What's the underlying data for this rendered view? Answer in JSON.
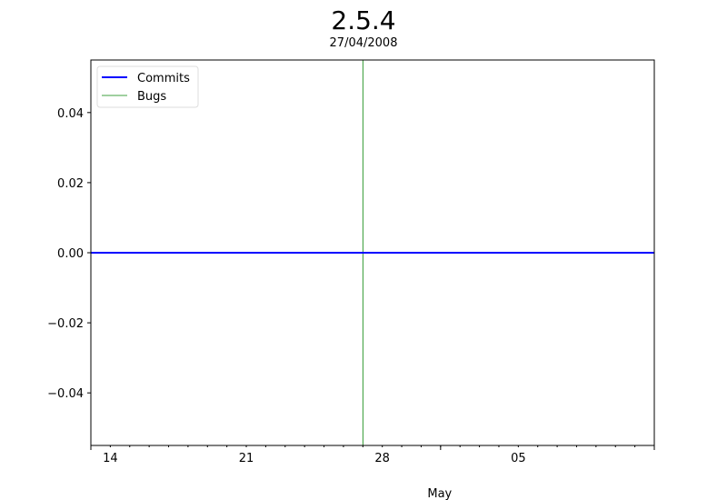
{
  "chart_data": {
    "type": "line",
    "title": "2.5.4",
    "subtitle": "27/04/2008",
    "xlabel": "May",
    "ylabel": "",
    "xlim": [
      "2008-04-13",
      "2008-05-12"
    ],
    "ylim": [
      -0.055,
      0.055
    ],
    "x_ticks": [
      {
        "date": "2008-04-14",
        "label": "14"
      },
      {
        "date": "2008-04-21",
        "label": "21"
      },
      {
        "date": "2008-04-28",
        "label": "28"
      },
      {
        "date": "2008-05-05",
        "label": "05"
      }
    ],
    "y_ticks": [
      {
        "value": 0.04,
        "label": "0.04"
      },
      {
        "value": 0.02,
        "label": "0.02"
      },
      {
        "value": 0.0,
        "label": "0.00"
      },
      {
        "value": -0.02,
        "label": "−0.02"
      },
      {
        "value": -0.04,
        "label": "−0.04"
      }
    ],
    "series": [
      {
        "name": "Commits",
        "color": "#0000ff",
        "x": [
          "2008-04-13",
          "2008-05-12"
        ],
        "y": [
          0,
          0
        ]
      }
    ],
    "vlines": [
      {
        "name": "Bugs",
        "color": "#008000",
        "x": "2008-04-27"
      }
    ],
    "legend": {
      "position": "top-left",
      "entries": [
        "Commits",
        "Bugs"
      ]
    },
    "grid": false
  }
}
